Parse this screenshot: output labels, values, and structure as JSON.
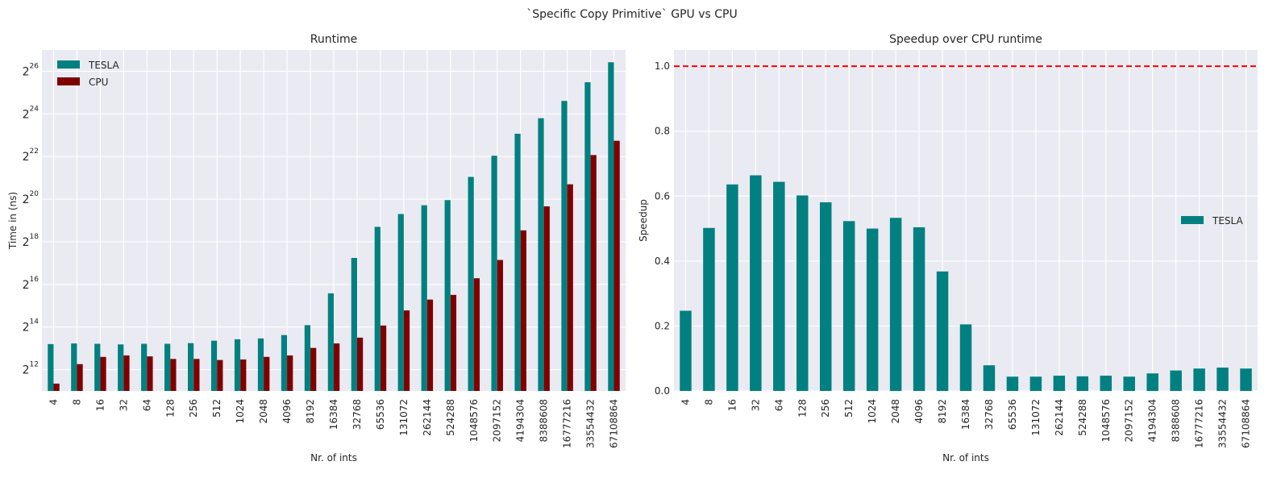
{
  "figure": {
    "suptitle": "`Specific Copy Primitive` GPU vs CPU"
  },
  "colors": {
    "tesla": "#008080",
    "cpu": "#800000",
    "reference_line": "#ff0000",
    "axes_bg": "#eaeaf2",
    "grid": "#ffffff"
  },
  "chart_data": [
    {
      "type": "bar",
      "title": "Runtime",
      "xlabel": "Nr. of ints",
      "ylabel": "Time in (ns)",
      "yscale": "log2",
      "ylim": [
        2048,
        134217728
      ],
      "yticks": [
        {
          "value": 4096,
          "base": "2",
          "exp": "12"
        },
        {
          "value": 16384,
          "base": "2",
          "exp": "14"
        },
        {
          "value": 65536,
          "base": "2",
          "exp": "16"
        },
        {
          "value": 262144,
          "base": "2",
          "exp": "18"
        },
        {
          "value": 1048576,
          "base": "2",
          "exp": "20"
        },
        {
          "value": 4194304,
          "base": "2",
          "exp": "22"
        },
        {
          "value": 16777216,
          "base": "2",
          "exp": "24"
        },
        {
          "value": 67108864,
          "base": "2",
          "exp": "26"
        }
      ],
      "grid": true,
      "legend_position": "top-left",
      "categories": [
        "4",
        "8",
        "16",
        "32",
        "64",
        "128",
        "256",
        "512",
        "1024",
        "2048",
        "4096",
        "8192",
        "16384",
        "32768",
        "65536",
        "131072",
        "262144",
        "524288",
        "1048576",
        "2097152",
        "4194304",
        "8388608",
        "16777216",
        "33554432",
        "67108864"
      ],
      "series": [
        {
          "name": "TESLA",
          "values": [
            9400,
            9600,
            9500,
            9300,
            9500,
            9500,
            9700,
            10500,
            11000,
            11300,
            12600,
            17400,
            49000,
            155000,
            426000,
            646000,
            859000,
            1016000,
            2160000,
            4300000,
            8800000,
            14600000,
            25600000,
            47000000,
            90000000
          ]
        },
        {
          "name": "CPU",
          "values": [
            2600,
            4900,
            6200,
            6500,
            6300,
            5800,
            5800,
            5600,
            5700,
            6200,
            6500,
            8300,
            9600,
            11600,
            17200,
            28100,
            40000,
            46600,
            80000,
            145000,
            380000,
            830000,
            1700000,
            4400000,
            7000000
          ]
        }
      ]
    },
    {
      "type": "bar",
      "title": "Speedup over CPU runtime",
      "xlabel": "Nr. of ints",
      "ylabel": "Speedup",
      "ylim": [
        0,
        1.05
      ],
      "yticks": [
        0.0,
        0.2,
        0.4,
        0.6,
        0.8,
        1.0
      ],
      "ytick_labels": [
        "0.0",
        "0.2",
        "0.4",
        "0.6",
        "0.8",
        "1.0"
      ],
      "grid": true,
      "legend_position": "center-right",
      "reference_line": {
        "y": 1.0,
        "style": "dashed"
      },
      "categories": [
        "4",
        "8",
        "16",
        "32",
        "64",
        "128",
        "256",
        "512",
        "1024",
        "2048",
        "4096",
        "8192",
        "16384",
        "32768",
        "65536",
        "131072",
        "262144",
        "524288",
        "1048576",
        "2097152",
        "4194304",
        "8388608",
        "16777216",
        "33554432",
        "67108864"
      ],
      "series": [
        {
          "name": "TESLA",
          "values": [
            0.247,
            0.502,
            0.636,
            0.664,
            0.644,
            0.602,
            0.581,
            0.523,
            0.5,
            0.533,
            0.504,
            0.368,
            0.205,
            0.079,
            0.044,
            0.044,
            0.047,
            0.045,
            0.047,
            0.044,
            0.054,
            0.063,
            0.069,
            0.072,
            0.069
          ]
        }
      ]
    }
  ]
}
